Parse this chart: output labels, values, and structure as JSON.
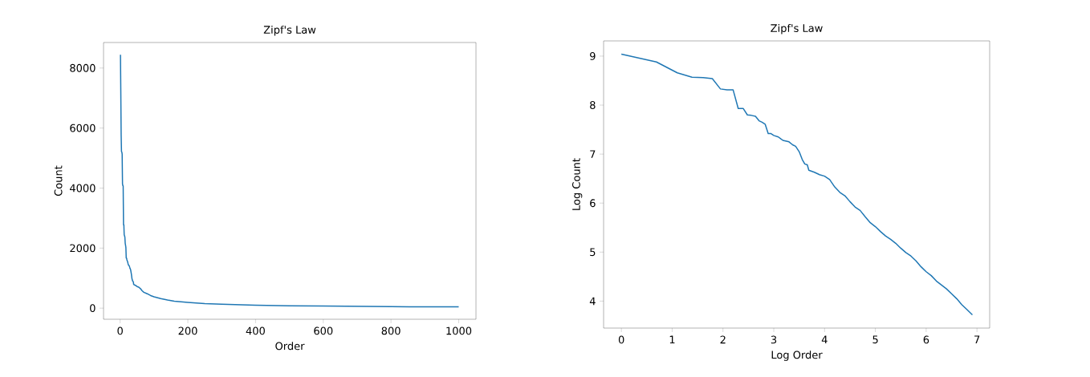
{
  "chart_data": [
    {
      "type": "line",
      "title": "Zipf's Law",
      "xlabel": "Order",
      "ylabel": "Count",
      "color": "#1f77b4",
      "x": [
        1,
        2,
        3,
        4,
        5,
        6,
        7,
        8,
        9,
        10,
        11,
        12,
        13,
        14,
        15,
        16,
        17,
        18,
        19,
        20,
        22,
        23,
        24,
        27,
        29,
        31,
        33,
        35,
        37,
        39,
        40,
        45,
        50,
        55,
        60,
        65,
        70,
        80,
        90,
        100,
        120,
        140,
        160,
        200,
        250,
        300,
        400,
        500,
        600,
        700,
        800,
        900,
        1000
      ],
      "values": [
        8440,
        7180,
        5780,
        5220,
        5200,
        5130,
        4140,
        4080,
        4070,
        2780,
        2780,
        2440,
        2410,
        2370,
        2160,
        2100,
        2020,
        1670,
        1670,
        1610,
        1550,
        1500,
        1450,
        1410,
        1330,
        1280,
        1150,
        980,
        900,
        880,
        790,
        760,
        720,
        700,
        650,
        580,
        530,
        480,
        420,
        380,
        320,
        270,
        230,
        190,
        150,
        130,
        100,
        80,
        70,
        60,
        50,
        45,
        41
      ],
      "xlim": [
        -49,
        1051
      ],
      "ylim": [
        -370,
        8850
      ],
      "xticks": [
        0,
        200,
        400,
        600,
        800,
        1000
      ],
      "yticks": [
        0,
        2000,
        4000,
        6000,
        8000
      ]
    },
    {
      "type": "line",
      "title": "Zipf's Law",
      "xlabel": "Log Order",
      "ylabel": "Log Count",
      "color": "#1f77b4",
      "x": [
        0,
        0.69,
        1.1,
        1.39,
        1.61,
        1.79,
        1.95,
        2.08,
        2.2,
        2.3,
        2.4,
        2.48,
        2.56,
        2.64,
        2.71,
        2.77,
        2.83,
        2.89,
        2.94,
        3.0,
        3.09,
        3.14,
        3.18,
        3.3,
        3.37,
        3.43,
        3.5,
        3.56,
        3.61,
        3.66,
        3.69,
        3.8,
        3.9,
        4.0,
        4.1,
        4.2,
        4.3,
        4.4,
        4.5,
        4.6,
        4.7,
        4.8,
        4.9,
        5.0,
        5.1,
        5.2,
        5.3,
        5.4,
        5.5,
        5.6,
        5.7,
        5.8,
        5.9,
        6.0,
        6.1,
        6.2,
        6.3,
        6.4,
        6.5,
        6.6,
        6.7,
        6.8,
        6.91
      ],
      "values": [
        9.04,
        8.88,
        8.66,
        8.57,
        8.56,
        8.54,
        8.33,
        8.31,
        8.31,
        7.93,
        7.93,
        7.8,
        7.79,
        7.77,
        7.68,
        7.65,
        7.61,
        7.42,
        7.42,
        7.38,
        7.35,
        7.31,
        7.28,
        7.25,
        7.19,
        7.16,
        7.05,
        6.89,
        6.8,
        6.78,
        6.67,
        6.63,
        6.58,
        6.55,
        6.48,
        6.33,
        6.22,
        6.15,
        6.03,
        5.92,
        5.85,
        5.72,
        5.6,
        5.52,
        5.42,
        5.33,
        5.26,
        5.18,
        5.08,
        4.99,
        4.92,
        4.82,
        4.7,
        4.6,
        4.52,
        4.41,
        4.33,
        4.25,
        4.15,
        4.05,
        3.93,
        3.83,
        3.72
      ],
      "xlim": [
        -0.35,
        7.25
      ],
      "ylim": [
        3.45,
        9.31
      ],
      "xticks": [
        0,
        1,
        2,
        3,
        4,
        5,
        6,
        7
      ],
      "yticks": [
        4,
        5,
        6,
        7,
        8,
        9
      ]
    }
  ]
}
